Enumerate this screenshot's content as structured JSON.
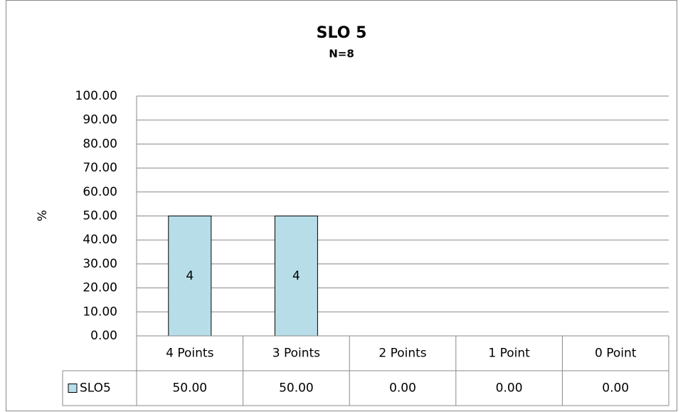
{
  "chart_data": {
    "type": "bar",
    "title": "SLO 5",
    "subtitle": "N=8",
    "ylabel": "%",
    "categories": [
      "4 Points",
      "3 Points",
      "2 Points",
      "1 Point",
      "0 Point"
    ],
    "series": [
      {
        "name": "SLO5",
        "color": "#b7dee8",
        "values": [
          50,
          50,
          0,
          0,
          0
        ],
        "value_labels": [
          "50.00",
          "50.00",
          "0.00",
          "0.00",
          "0.00"
        ],
        "bar_labels": [
          4,
          4,
          null,
          null,
          null
        ]
      }
    ],
    "ylim": [
      0,
      100
    ],
    "yticks": [
      {
        "value": 0,
        "label": "0.00"
      },
      {
        "value": 10,
        "label": "10.00"
      },
      {
        "value": 20,
        "label": "20.00"
      },
      {
        "value": 30,
        "label": "30.00"
      },
      {
        "value": 40,
        "label": "40.00"
      },
      {
        "value": 50,
        "label": "50.00"
      },
      {
        "value": 60,
        "label": "60.00"
      },
      {
        "value": 70,
        "label": "70.00"
      },
      {
        "value": 80,
        "label": "80.00"
      },
      {
        "value": 90,
        "label": "90.00"
      },
      {
        "value": 100,
        "label": "100.00"
      }
    ],
    "grid": true,
    "data_table": true
  }
}
